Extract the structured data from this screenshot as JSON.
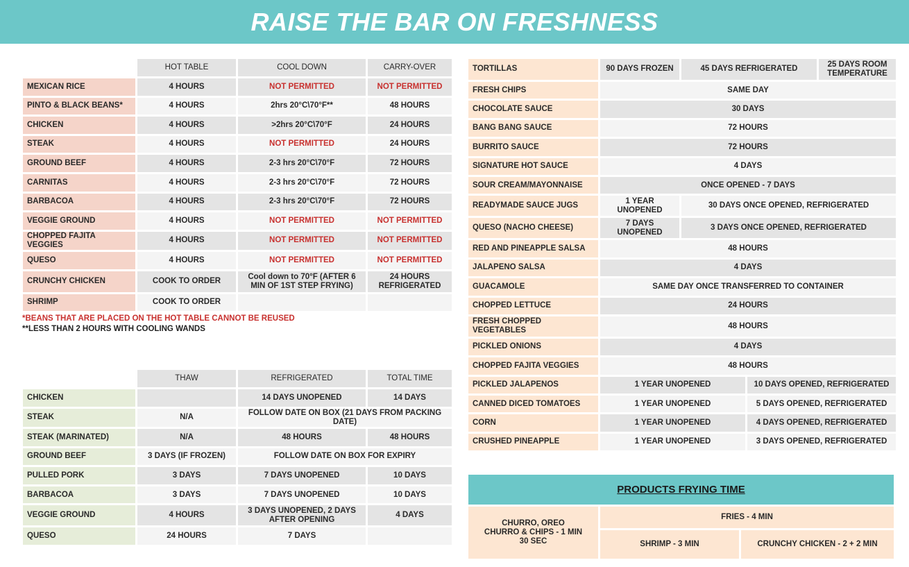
{
  "title": "RAISE THE BAR ON FRESHNESS",
  "hot_table": {
    "headers": [
      "HOT TABLE",
      "COOL DOWN",
      "CARRY-OVER"
    ],
    "rows": [
      {
        "label": "MEXICAN RICE",
        "cells": [
          {
            "t": "4 HOURS"
          },
          {
            "t": "NOT PERMITTED",
            "red": true
          },
          {
            "t": "NOT PERMITTED",
            "red": true
          }
        ]
      },
      {
        "label": "PINTO & BLACK BEANS*",
        "cells": [
          {
            "t": "4 HOURS"
          },
          {
            "t": "2hrs 20°C\\70°F**"
          },
          {
            "t": "48 HOURS"
          }
        ]
      },
      {
        "label": "CHICKEN",
        "cells": [
          {
            "t": "4 HOURS"
          },
          {
            "t": ">2hrs 20°C\\70°F"
          },
          {
            "t": "24 HOURS"
          }
        ]
      },
      {
        "label": "STEAK",
        "cells": [
          {
            "t": "4 HOURS"
          },
          {
            "t": "NOT PERMITTED",
            "red": true
          },
          {
            "t": "24 HOURS"
          }
        ]
      },
      {
        "label": "GROUND BEEF",
        "cells": [
          {
            "t": "4 HOURS"
          },
          {
            "t": "2-3 hrs 20°C\\70°F"
          },
          {
            "t": "72 HOURS"
          }
        ]
      },
      {
        "label": "CARNITAS",
        "cells": [
          {
            "t": "4 HOURS"
          },
          {
            "t": "2-3 hrs 20°C\\70°F"
          },
          {
            "t": "72 HOURS"
          }
        ]
      },
      {
        "label": "BARBACOA",
        "cells": [
          {
            "t": "4 HOURS"
          },
          {
            "t": "2-3 hrs 20°C\\70°F"
          },
          {
            "t": "72 HOURS"
          }
        ]
      },
      {
        "label": "VEGGIE GROUND",
        "cells": [
          {
            "t": "4 HOURS"
          },
          {
            "t": "NOT PERMITTED",
            "red": true
          },
          {
            "t": "NOT PERMITTED",
            "red": true
          }
        ]
      },
      {
        "label": "CHOPPED FAJITA VEGGIES",
        "cells": [
          {
            "t": "4 HOURS"
          },
          {
            "t": "NOT PERMITTED",
            "red": true
          },
          {
            "t": "NOT PERMITTED",
            "red": true
          }
        ]
      },
      {
        "label": "QUESO",
        "cells": [
          {
            "t": "4 HOURS"
          },
          {
            "t": "NOT PERMITTED",
            "red": true
          },
          {
            "t": "NOT PERMITTED",
            "red": true
          }
        ]
      },
      {
        "label": "CRUNCHY CHICKEN",
        "cells": [
          {
            "t": "COOK TO ORDER"
          },
          {
            "t": "Cool down to 70°F (AFTER 6 MIN OF 1ST STEP FRYING)"
          },
          {
            "t": "24 HOURS REFRIGERATED"
          }
        ]
      },
      {
        "label": "SHRIMP",
        "cells": [
          {
            "t": "COOK TO ORDER"
          },
          {
            "t": ""
          },
          {
            "t": ""
          }
        ]
      }
    ],
    "note1": "*BEANS THAT ARE PLACED ON THE HOT TABLE CANNOT BE REUSED",
    "note2": "**LESS THAN 2 HOURS WITH COOLING WANDS"
  },
  "thaw_table": {
    "headers": [
      "THAW",
      "REFRIGERATED",
      "TOTAL TIME"
    ],
    "rows": [
      {
        "label": "CHICKEN",
        "cells": [
          {
            "t": ""
          },
          {
            "t": "14 DAYS UNOPENED"
          },
          {
            "t": "14 DAYS"
          }
        ]
      },
      {
        "label": "STEAK",
        "cells": [
          {
            "t": "N/A"
          },
          {
            "t": "FOLLOW DATE ON BOX (21 DAYS FROM PACKING DATE)",
            "span": 2
          }
        ]
      },
      {
        "label": "STEAK (MARINATED)",
        "cells": [
          {
            "t": "N/A"
          },
          {
            "t": "48 HOURS"
          },
          {
            "t": "48 HOURS"
          }
        ]
      },
      {
        "label": "GROUND BEEF",
        "cells": [
          {
            "t": "3 DAYS (IF FROZEN)"
          },
          {
            "t": "FOLLOW DATE ON BOX FOR EXPIRY",
            "span": 2
          }
        ]
      },
      {
        "label": "PULLED PORK",
        "cells": [
          {
            "t": "3 DAYS"
          },
          {
            "t": "7 DAYS UNOPENED"
          },
          {
            "t": "10 DAYS"
          }
        ]
      },
      {
        "label": "BARBACOA",
        "cells": [
          {
            "t": "3 DAYS"
          },
          {
            "t": "7 DAYS UNOPENED"
          },
          {
            "t": "10 DAYS"
          }
        ]
      },
      {
        "label": "VEGGIE GROUND",
        "cells": [
          {
            "t": "4 HOURS"
          },
          {
            "t": "3 DAYS UNOPENED, 2 DAYS AFTER OPENING"
          },
          {
            "t": "4 DAYS"
          }
        ]
      },
      {
        "label": "QUESO",
        "cells": [
          {
            "t": "24 HOURS"
          },
          {
            "t": "7 DAYS"
          },
          {
            "t": ""
          }
        ]
      }
    ]
  },
  "products_table": {
    "rows": [
      {
        "label": "TORTILLAS",
        "cells": [
          {
            "t": "90 DAYS FROZEN"
          },
          {
            "t": "45 DAYS REFRIGERATED",
            "span": 2
          },
          {
            "t": "25 DAYS ROOM TEMPERATURE"
          }
        ]
      },
      {
        "label": "FRESH CHIPS",
        "cells": [
          {
            "t": "SAME DAY",
            "span": 4
          }
        ]
      },
      {
        "label": "CHOCOLATE SAUCE",
        "cells": [
          {
            "t": "30 DAYS",
            "span": 4
          }
        ]
      },
      {
        "label": "BANG BANG SAUCE",
        "cells": [
          {
            "t": "72 HOURS",
            "span": 4
          }
        ]
      },
      {
        "label": "BURRITO SAUCE",
        "cells": [
          {
            "t": "72 HOURS",
            "span": 4
          }
        ]
      },
      {
        "label": "SIGNATURE HOT SAUCE",
        "cells": [
          {
            "t": "4 DAYS",
            "span": 4
          }
        ]
      },
      {
        "label": "SOUR CREAM/MAYONNAISE",
        "cells": [
          {
            "t": "ONCE OPENED - 7 DAYS",
            "span": 4
          }
        ]
      },
      {
        "label": "READYMADE SAUCE JUGS",
        "cells": [
          {
            "t": "1 YEAR UNOPENED"
          },
          {
            "t": "30 DAYS ONCE OPENED, REFRIGERATED",
            "span": 3
          }
        ]
      },
      {
        "label": "QUESO (NACHO CHEESE)",
        "cells": [
          {
            "t": "7 DAYS UNOPENED"
          },
          {
            "t": "3 DAYS ONCE OPENED, REFRIGERATED",
            "span": 3
          }
        ]
      },
      {
        "label": "RED AND PINEAPPLE SALSA",
        "cells": [
          {
            "t": "48 HOURS",
            "span": 4
          }
        ]
      },
      {
        "label": "JALAPENO SALSA",
        "cells": [
          {
            "t": "4 DAYS",
            "span": 4
          }
        ]
      },
      {
        "label": "GUACAMOLE",
        "cells": [
          {
            "t": "SAME DAY ONCE TRANSFERRED TO CONTAINER",
            "span": 4
          }
        ]
      },
      {
        "label": "CHOPPED LETTUCE",
        "cells": [
          {
            "t": "24 HOURS",
            "span": 4
          }
        ]
      },
      {
        "label": "FRESH CHOPPED VEGETABLES",
        "cells": [
          {
            "t": "48 HOURS",
            "span": 4
          }
        ]
      },
      {
        "label": "PICKLED ONIONS",
        "cells": [
          {
            "t": "4 DAYS",
            "span": 4
          }
        ]
      },
      {
        "label": "CHOPPED FAJITA VEGGIES",
        "cells": [
          {
            "t": "48 HOURS",
            "span": 4
          }
        ]
      },
      {
        "label": "PICKLED JALAPENOS",
        "cells": [
          {
            "t": "1 YEAR UNOPENED",
            "span": 2
          },
          {
            "t": "10 DAYS OPENED, REFRIGERATED",
            "span": 2
          }
        ]
      },
      {
        "label": "CANNED DICED TOMATOES",
        "cells": [
          {
            "t": "1 YEAR UNOPENED",
            "span": 2
          },
          {
            "t": "5 DAYS OPENED, REFRIGERATED",
            "span": 2
          }
        ]
      },
      {
        "label": "CORN",
        "cells": [
          {
            "t": "1 YEAR UNOPENED",
            "span": 2
          },
          {
            "t": "4 DAYS OPENED, REFRIGERATED",
            "span": 2
          }
        ]
      },
      {
        "label": "CRUSHED PINEAPPLE",
        "cells": [
          {
            "t": "1 YEAR UNOPENED",
            "span": 2
          },
          {
            "t": "3 DAYS OPENED, REFRIGERATED",
            "span": 2
          }
        ]
      }
    ]
  },
  "frying": {
    "title": "PRODUCTS FRYING TIME",
    "churro": "CHURRO, OREO CHURRO & CHIPS - 1 MIN 30 SEC",
    "fries": "FRIES - 4 MIN",
    "shrimp": "SHRIMP - 3 MIN",
    "crunchy": "CRUNCHY CHICKEN - 2 + 2 MIN"
  },
  "colors": {
    "banner": "#6cc7c8",
    "red_text": "#c8312f",
    "pink_label": "#f5d4c9",
    "green_label": "#e6edd9",
    "peach_label": "#fde6d2"
  }
}
